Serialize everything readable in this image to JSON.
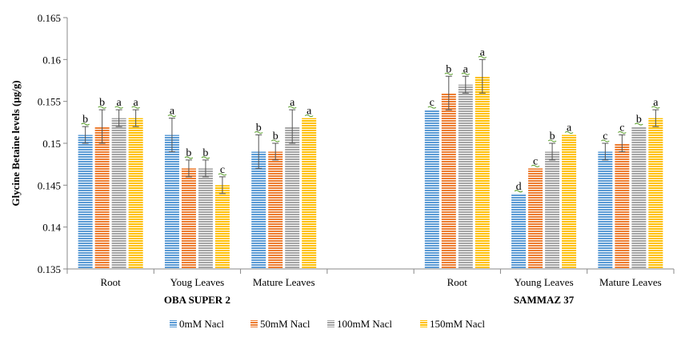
{
  "chart_data": {
    "type": "bar",
    "title": "",
    "ylabel": "Glycine Betaine levels (μg/g)",
    "xlabel": "",
    "ylim": [
      0.135,
      0.165
    ],
    "yticks": [
      0.135,
      0.14,
      0.145,
      0.15,
      0.155,
      0.16,
      0.165
    ],
    "ytick_labels": [
      "0.135",
      "0.14",
      "0.145",
      "0.15",
      "0.155",
      "0.16",
      "0.165"
    ],
    "grid": false,
    "legend_position": "bottom",
    "groups": [
      {
        "name": "OBA SUPER 2",
        "categories": [
          "Root",
          "Youg Leaves",
          "Mature Leaves"
        ]
      },
      {
        "name": "SAMMAZ 37",
        "categories": [
          "Root",
          "Young Leaves",
          "Mature Leaves"
        ]
      }
    ],
    "series": [
      {
        "name": "0mM Nacl",
        "color": "#5B9BD5",
        "values": [
          0.151,
          0.151,
          0.149,
          0.154,
          0.144,
          0.149
        ],
        "errors": [
          0.001,
          0.002,
          0.002,
          0.0,
          0.0,
          0.001
        ],
        "letters": [
          "b",
          "a",
          "b",
          "c",
          "d",
          "c"
        ]
      },
      {
        "name": "50mM Nacl",
        "color": "#ED7D31",
        "values": [
          0.152,
          0.147,
          0.149,
          0.156,
          0.147,
          0.15
        ],
        "errors": [
          0.002,
          0.001,
          0.001,
          0.002,
          0.0,
          0.001
        ],
        "letters": [
          "b",
          "b",
          "b",
          "b",
          "c",
          "c"
        ]
      },
      {
        "name": "100mM Nacl",
        "color": "#A5A5A5",
        "values": [
          0.153,
          0.147,
          0.152,
          0.157,
          0.149,
          0.152
        ],
        "errors": [
          0.001,
          0.001,
          0.002,
          0.001,
          0.001,
          0.0
        ],
        "letters": [
          "a",
          "b",
          "a",
          "a",
          "b",
          "b"
        ]
      },
      {
        "name": "150mM Nacl",
        "color": "#FFC000",
        "values": [
          0.153,
          0.145,
          0.153,
          0.158,
          0.151,
          0.153
        ],
        "errors": [
          0.001,
          0.001,
          0.0,
          0.002,
          0.0,
          0.001
        ],
        "letters": [
          "a",
          "c",
          "a",
          "a",
          "a",
          "a"
        ]
      }
    ]
  }
}
